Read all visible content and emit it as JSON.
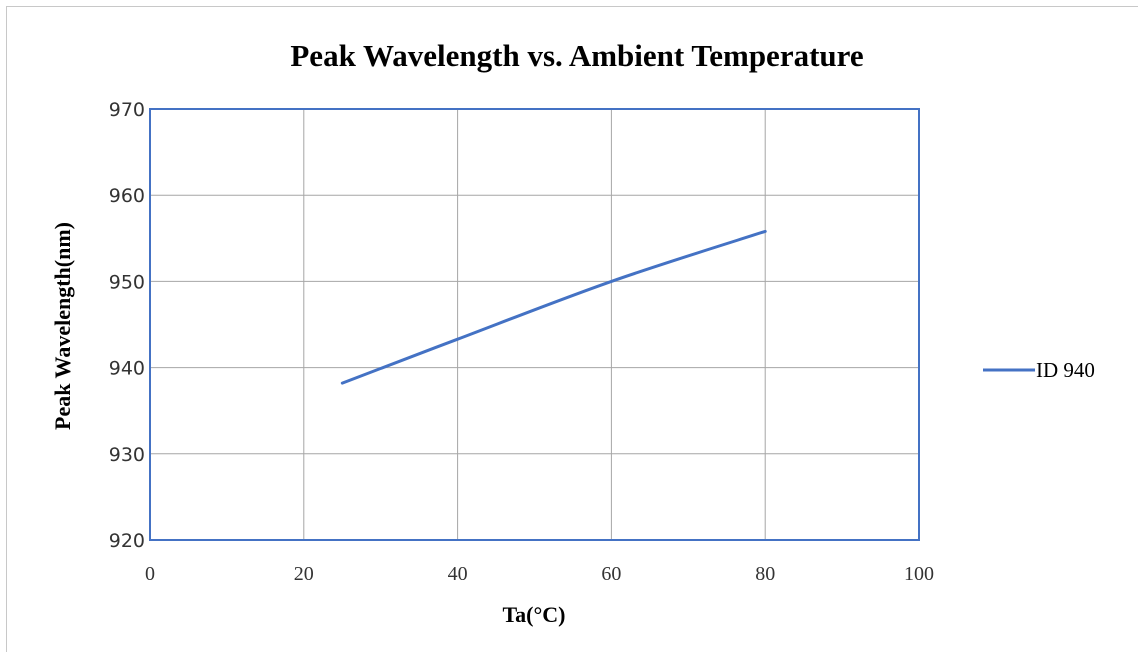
{
  "chart_data": {
    "type": "line",
    "title": "Peak Wavelength  vs. Ambient Temperature",
    "xlabel": "Ta(°C)",
    "ylabel": "Peak Wavelength(nm)",
    "xlim": [
      0,
      100
    ],
    "ylim": [
      920,
      970
    ],
    "xticks": [
      0,
      20,
      40,
      60,
      80,
      100
    ],
    "yticks": [
      920,
      930,
      940,
      950,
      960,
      970
    ],
    "grid": true,
    "legend_position": "right",
    "series": [
      {
        "name": "ID 940",
        "color": "#4472c4",
        "x": [
          25,
          40,
          60,
          80
        ],
        "y": [
          938.2,
          943.3,
          950.0,
          955.8
        ]
      }
    ]
  }
}
